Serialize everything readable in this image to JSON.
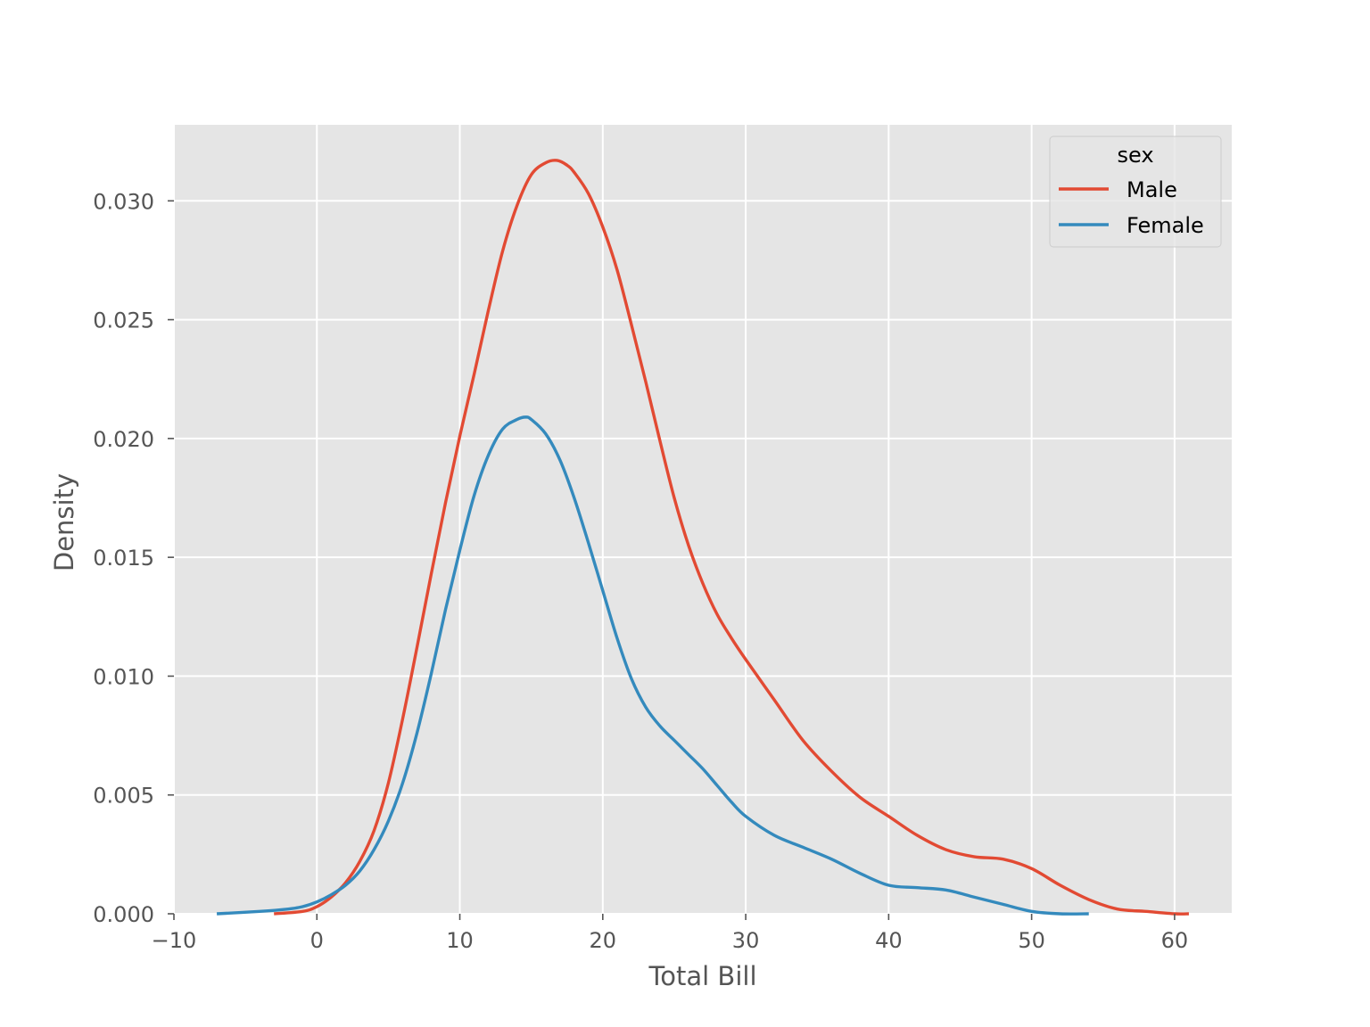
{
  "chart_data": {
    "type": "line",
    "title": "",
    "xlabel": "Total Bill",
    "ylabel": "Density",
    "xlim": [
      -10,
      64
    ],
    "ylim": [
      0,
      0.0332
    ],
    "xticks": [
      -10,
      0,
      10,
      20,
      30,
      40,
      50,
      60
    ],
    "xtick_labels": [
      "−10",
      "0",
      "10",
      "20",
      "30",
      "40",
      "50",
      "60"
    ],
    "yticks": [
      0,
      0.005,
      0.01,
      0.015,
      0.02,
      0.025,
      0.03
    ],
    "ytick_labels": [
      "0.000",
      "0.005",
      "0.010",
      "0.015",
      "0.020",
      "0.025",
      "0.030"
    ],
    "grid": true,
    "background": "#e5e5e5",
    "legend": {
      "title": "sex",
      "position": "top-right"
    },
    "series": [
      {
        "name": "Male",
        "color": "#e24a33",
        "x": [
          -3,
          -1,
          0,
          1,
          2,
          3,
          4,
          5,
          6,
          7,
          8,
          9,
          10,
          11,
          12,
          13,
          14,
          15,
          16,
          16.8,
          17.5,
          18,
          19,
          20,
          21,
          22,
          23,
          24,
          25,
          26,
          27,
          28,
          29,
          30,
          32,
          34,
          36,
          38,
          40,
          42,
          44,
          46,
          48,
          50,
          52,
          54,
          56,
          58,
          60,
          61
        ],
        "y": [
          0,
          0.0001,
          0.0003,
          0.0007,
          0.0013,
          0.0022,
          0.0035,
          0.0055,
          0.0082,
          0.0112,
          0.0143,
          0.0173,
          0.0201,
          0.0227,
          0.0254,
          0.0279,
          0.0298,
          0.0311,
          0.0316,
          0.0317,
          0.0315,
          0.0312,
          0.0303,
          0.0289,
          0.0271,
          0.0248,
          0.0224,
          0.0199,
          0.0175,
          0.0155,
          0.0139,
          0.0126,
          0.0116,
          0.0107,
          0.009,
          0.0073,
          0.006,
          0.0049,
          0.0041,
          0.0033,
          0.0027,
          0.0024,
          0.0023,
          0.0019,
          0.0012,
          0.0006,
          0.0002,
          0.0001,
          0,
          0
        ]
      },
      {
        "name": "Female",
        "color": "#348abd",
        "x": [
          -7,
          -4,
          -2,
          -1,
          0,
          1,
          2,
          3,
          4,
          5,
          6,
          7,
          8,
          9,
          10,
          11,
          12,
          13,
          14,
          14.6,
          15,
          16,
          17,
          18,
          19,
          20,
          21,
          22,
          23,
          24,
          25,
          26,
          27,
          28,
          29,
          30,
          32,
          34,
          36,
          38,
          40,
          42,
          44,
          46,
          48,
          50,
          52,
          54
        ],
        "y": [
          0,
          0.0001,
          0.0002,
          0.0003,
          0.0005,
          0.0008,
          0.0012,
          0.0018,
          0.0027,
          0.0039,
          0.0055,
          0.0076,
          0.0101,
          0.0128,
          0.0153,
          0.0176,
          0.0193,
          0.0204,
          0.0208,
          0.0209,
          0.0208,
          0.0202,
          0.0191,
          0.0175,
          0.0156,
          0.0136,
          0.0116,
          0.0099,
          0.0087,
          0.0079,
          0.0073,
          0.0067,
          0.0061,
          0.0054,
          0.0047,
          0.0041,
          0.0033,
          0.0028,
          0.0023,
          0.0017,
          0.0012,
          0.0011,
          0.001,
          0.0007,
          0.0004,
          0.0001,
          0,
          0
        ]
      }
    ]
  }
}
